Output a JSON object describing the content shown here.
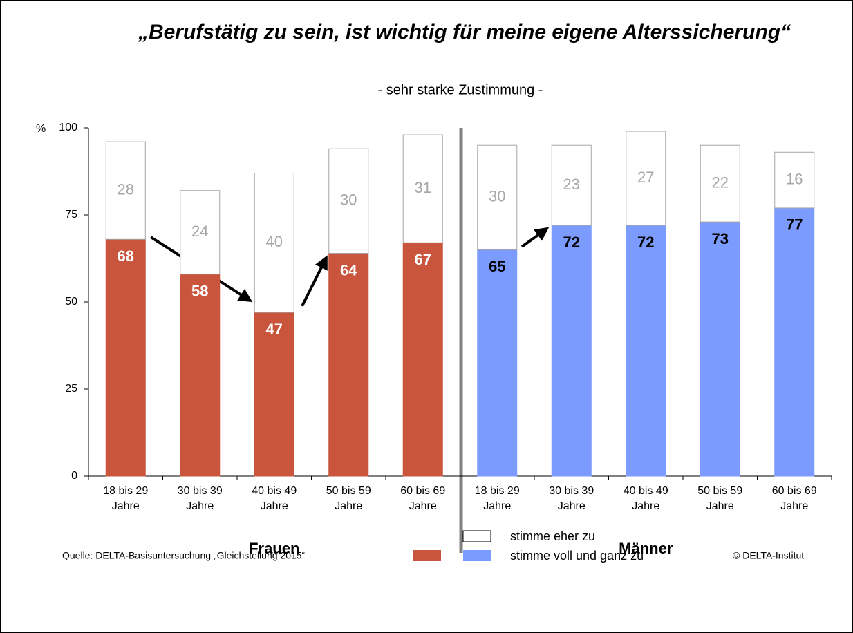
{
  "chart_data": {
    "type": "stacked_bar",
    "title": "„Berufstätig zu sein, ist wichtig für meine eigene Alterssicherung“",
    "subtitle": "- sehr starke Zustimmung -",
    "y_unit": "%",
    "categories": [
      "18 bis 29 Jahre",
      "30 bis 39 Jahre",
      "40 bis 49 Jahre",
      "50 bis 59 Jahre",
      "60 bis 69 Jahre",
      "18 bis 29 Jahre",
      "30 bis 39 Jahre",
      "40 bis 49 Jahre",
      "50 bis 59 Jahre",
      "60 bis 69 Jahre"
    ],
    "groups": [
      "Frauen",
      "Männer"
    ],
    "series": [
      {
        "name": "stimme voll und ganz zu",
        "colors": [
          "#c9553d",
          "#c9553d",
          "#c9553d",
          "#c9553d",
          "#c9553d",
          "#7b9bff",
          "#7b9bff",
          "#7b9bff",
          "#7b9bff",
          "#7b9bff"
        ],
        "values": [
          68,
          58,
          47,
          64,
          67,
          65,
          72,
          72,
          73,
          77
        ]
      },
      {
        "name": "stimme eher zu",
        "color": "#ffffff",
        "values": [
          28,
          24,
          40,
          30,
          31,
          30,
          23,
          27,
          22,
          16
        ]
      }
    ],
    "ylim": [
      0,
      100
    ],
    "yticks": [
      0,
      25,
      50,
      75,
      100
    ],
    "source": "Quelle: DELTA-Basisuntersuchung „Gleichstellung 2015“",
    "copyright": "© DELTA-Institut"
  }
}
